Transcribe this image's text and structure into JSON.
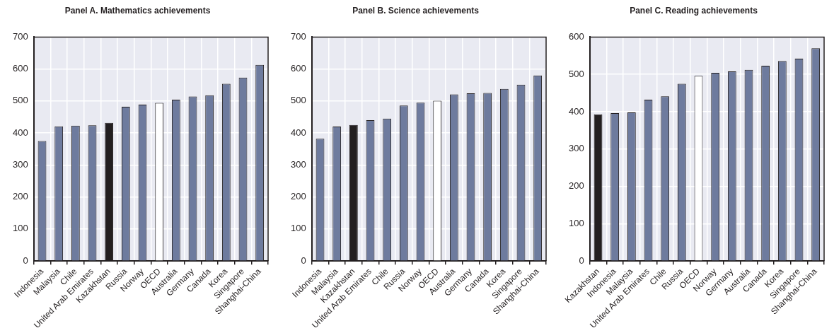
{
  "chart_data": [
    {
      "type": "bar",
      "title": "Panel A. Mathematics achievements",
      "categories": [
        "Indonesia",
        "Malaysia",
        "Chile",
        "United Arab Emirates",
        "Kazakhstan",
        "Russia",
        "Norway",
        "OECD",
        "Australia",
        "Germany",
        "Canada",
        "Korea",
        "Singapore",
        "Shanghai-China"
      ],
      "values": [
        375,
        421,
        423,
        424,
        432,
        482,
        489,
        494,
        504,
        514,
        518,
        554,
        573,
        613
      ],
      "colors": [
        "#6e7b9e",
        "#6e7b9e",
        "#6e7b9e",
        "#6e7b9e",
        "#231f20",
        "#6e7b9e",
        "#6e7b9e",
        "#ffffff",
        "#6e7b9e",
        "#6e7b9e",
        "#6e7b9e",
        "#6e7b9e",
        "#6e7b9e",
        "#6e7b9e"
      ],
      "ylim": [
        0,
        700
      ],
      "yticks": [
        0,
        100,
        200,
        300,
        400,
        500,
        600,
        700
      ],
      "grid": true
    },
    {
      "type": "bar",
      "title": "Panel B. Science achievements",
      "categories": [
        "Indonesia",
        "Malaysia",
        "Kazakhstan",
        "United Arab Emirates",
        "Chile",
        "Russia",
        "Norway",
        "OECD",
        "Australia",
        "Germany",
        "Canada",
        "Korea",
        "Singapore",
        "Shanghai-China"
      ],
      "values": [
        382,
        420,
        425,
        440,
        445,
        486,
        495,
        501,
        521,
        524,
        525,
        538,
        551,
        580
      ],
      "colors": [
        "#6e7b9e",
        "#6e7b9e",
        "#231f20",
        "#6e7b9e",
        "#6e7b9e",
        "#6e7b9e",
        "#6e7b9e",
        "#ffffff",
        "#6e7b9e",
        "#6e7b9e",
        "#6e7b9e",
        "#6e7b9e",
        "#6e7b9e",
        "#6e7b9e"
      ],
      "ylim": [
        0,
        700
      ],
      "yticks": [
        0,
        100,
        200,
        300,
        400,
        500,
        600,
        700
      ],
      "grid": true
    },
    {
      "type": "bar",
      "title": "Panel C. Reading achievements",
      "categories": [
        "Kazakhstan",
        "Indonesia",
        "Malaysia",
        "United Arab Emirates",
        "Chile",
        "Russia",
        "OECD",
        "Norway",
        "Germany",
        "Australia",
        "Canada",
        "Korea",
        "Singapore",
        "Shanghai-China"
      ],
      "values": [
        393,
        396,
        398,
        432,
        441,
        475,
        496,
        504,
        508,
        512,
        523,
        536,
        542,
        570
      ],
      "colors": [
        "#231f20",
        "#6e7b9e",
        "#6e7b9e",
        "#6e7b9e",
        "#6e7b9e",
        "#6e7b9e",
        "#ffffff",
        "#6e7b9e",
        "#6e7b9e",
        "#6e7b9e",
        "#6e7b9e",
        "#6e7b9e",
        "#6e7b9e",
        "#6e7b9e"
      ],
      "ylim": [
        0,
        600
      ],
      "yticks": [
        0,
        100,
        200,
        300,
        400,
        500,
        600
      ],
      "grid": true
    }
  ]
}
